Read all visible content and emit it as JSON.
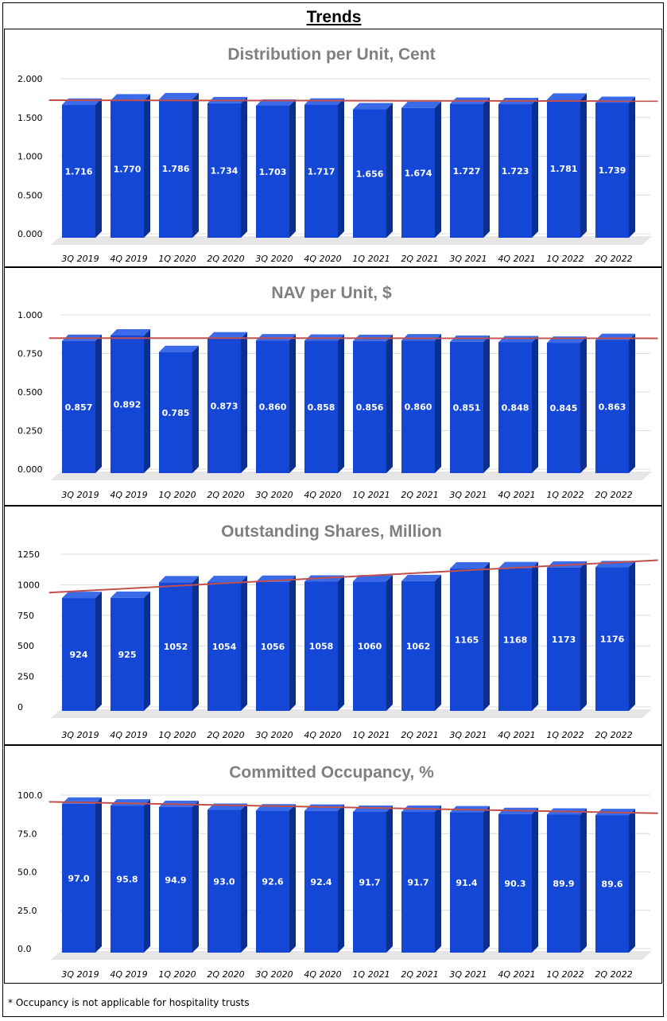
{
  "page": {
    "title": "Trends",
    "footnote": "* Occupancy is not applicable for hospitality trusts"
  },
  "colors": {
    "bar_front": "#1447d6",
    "bar_top": "#3a6ae8",
    "bar_side": "#0b2f8f",
    "trend": "#c0504d",
    "title": "#7f7f7f",
    "floor": "#e6e6e6"
  },
  "chart_data": [
    {
      "type": "bar",
      "title": "Distribution per Unit, Cent",
      "categories": [
        "3Q 2019",
        "4Q 2019",
        "1Q 2020",
        "2Q 2020",
        "3Q 2020",
        "4Q 2020",
        "1Q 2021",
        "2Q 2021",
        "3Q 2021",
        "4Q 2021",
        "1Q 2022",
        "2Q 2022"
      ],
      "values": [
        1.716,
        1.77,
        1.786,
        1.734,
        1.703,
        1.717,
        1.656,
        1.674,
        1.727,
        1.723,
        1.781,
        1.739
      ],
      "value_labels": [
        "1.716",
        "1.770",
        "1.786",
        "1.734",
        "1.703",
        "1.717",
        "1.656",
        "1.674",
        "1.727",
        "1.723",
        "1.781",
        "1.739"
      ],
      "yticks": [
        "0.000",
        "0.500",
        "1.000",
        "1.500",
        "2.000"
      ],
      "ylim": [
        0,
        2
      ],
      "trendline": true
    },
    {
      "type": "bar",
      "title": "NAV per Unit, $",
      "categories": [
        "3Q 2019",
        "4Q 2019",
        "1Q 2020",
        "2Q 2020",
        "3Q 2020",
        "4Q 2020",
        "1Q 2021",
        "2Q 2021",
        "3Q 2021",
        "4Q 2021",
        "1Q 2022",
        "2Q 2022"
      ],
      "values": [
        0.857,
        0.892,
        0.785,
        0.873,
        0.86,
        0.858,
        0.856,
        0.86,
        0.851,
        0.848,
        0.845,
        0.863
      ],
      "value_labels": [
        "0.857",
        "0.892",
        "0.785",
        "0.873",
        "0.860",
        "0.858",
        "0.856",
        "0.860",
        "0.851",
        "0.848",
        "0.845",
        "0.863"
      ],
      "yticks": [
        "0.000",
        "0.250",
        "0.500",
        "0.750",
        "1.000"
      ],
      "ylim": [
        0,
        1
      ],
      "trendline": true
    },
    {
      "type": "bar",
      "title": "Outstanding Shares, Million",
      "categories": [
        "3Q 2019",
        "4Q 2019",
        "1Q 2020",
        "2Q 2020",
        "3Q 2020",
        "4Q 2020",
        "1Q 2021",
        "2Q 2021",
        "3Q 2021",
        "4Q 2021",
        "1Q 2022",
        "2Q 2022"
      ],
      "values": [
        924,
        925,
        1052,
        1054,
        1056,
        1058,
        1060,
        1062,
        1165,
        1168,
        1173,
        1176
      ],
      "value_labels": [
        "924",
        "925",
        "1052",
        "1054",
        "1056",
        "1058",
        "1060",
        "1062",
        "1165",
        "1168",
        "1173",
        "1176"
      ],
      "yticks": [
        "0",
        "250",
        "500",
        "750",
        "1000",
        "1250"
      ],
      "ylim": [
        0,
        1250
      ],
      "trendline": true
    },
    {
      "type": "bar",
      "title": "Committed Occupancy, %",
      "categories": [
        "3Q 2019",
        "4Q 2019",
        "1Q 2020",
        "2Q 2020",
        "3Q 2020",
        "4Q 2020",
        "1Q 2021",
        "2Q 2021",
        "3Q 2021",
        "4Q 2021",
        "1Q 2022",
        "2Q 2022"
      ],
      "values": [
        97.0,
        95.8,
        94.9,
        93.0,
        92.6,
        92.4,
        91.7,
        91.7,
        91.4,
        90.3,
        89.9,
        89.6
      ],
      "value_labels": [
        "97.0",
        "95.8",
        "94.9",
        "93.0",
        "92.6",
        "92.4",
        "91.7",
        "91.7",
        "91.4",
        "90.3",
        "89.9",
        "89.6"
      ],
      "yticks": [
        "0.0",
        "25.0",
        "50.0",
        "75.0",
        "100.0"
      ],
      "ylim": [
        0,
        100
      ],
      "trendline": true
    }
  ]
}
